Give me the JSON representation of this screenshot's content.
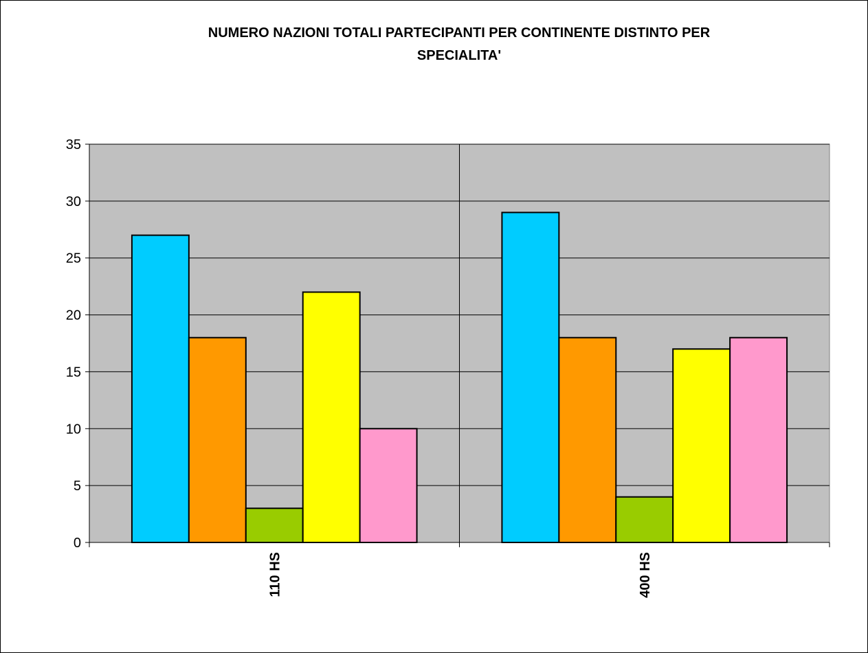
{
  "chart_data": {
    "type": "bar",
    "title": [
      "NUMERO NAZIONI TOTALI PARTECIPANTI PER CONTINENTE DISTINTO PER",
      "SPECIALITA'"
    ],
    "categories": [
      "110 HS",
      "400 HS"
    ],
    "series": [
      {
        "color": "#00ccff",
        "values": [
          27,
          29
        ]
      },
      {
        "color": "#ff9900",
        "values": [
          18,
          18
        ]
      },
      {
        "color": "#99cc00",
        "values": [
          3,
          4
        ]
      },
      {
        "color": "#ffff00",
        "values": [
          22,
          17
        ]
      },
      {
        "color": "#ff99cc",
        "values": [
          10,
          18
        ]
      }
    ],
    "ylim": [
      0,
      35
    ],
    "yticks": [
      0,
      5,
      10,
      15,
      20,
      25,
      30,
      35
    ],
    "grid": true,
    "plot_background": "#c0c0c0"
  }
}
